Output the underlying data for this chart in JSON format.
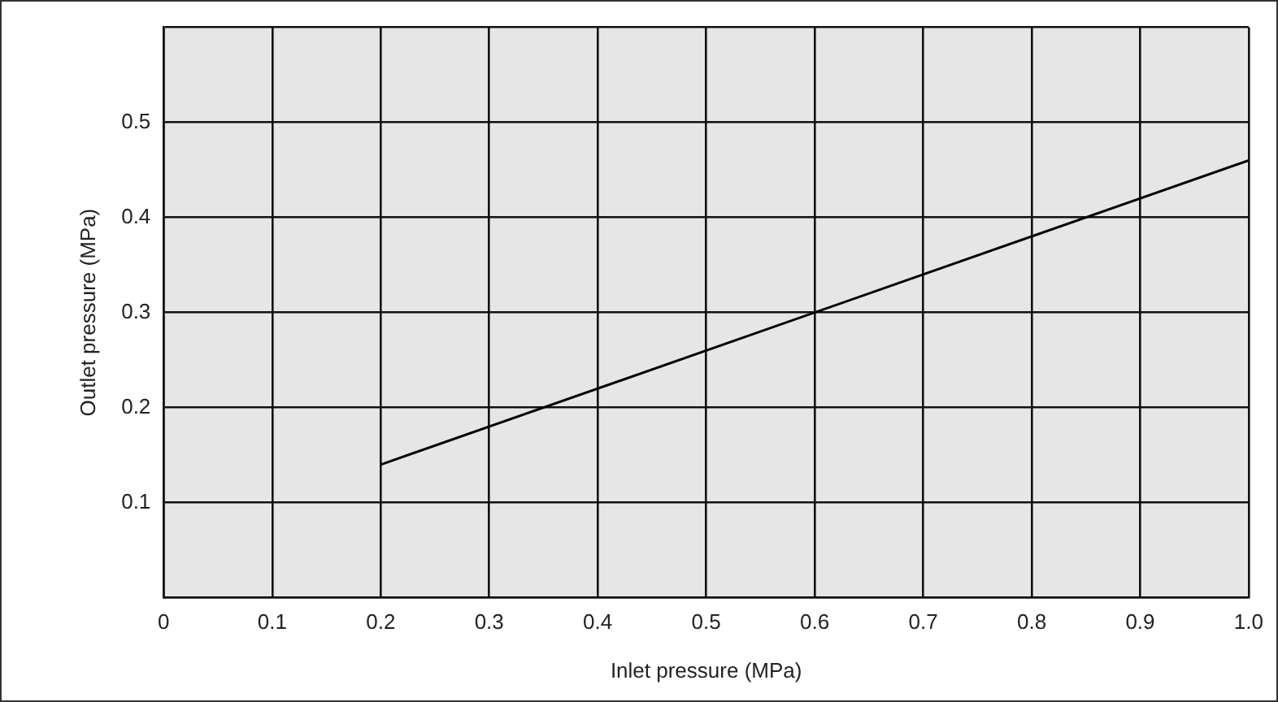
{
  "chart_data": {
    "type": "line",
    "xlabel": "Inlet pressure (MPa)",
    "ylabel": "Outlet pressure (MPa)",
    "x": [
      0.2,
      1.0
    ],
    "series": [
      {
        "color": "#000000",
        "values": [
          0.14,
          0.46
        ]
      }
    ],
    "xlim": [
      0,
      1.0
    ],
    "xticks": [
      0,
      0.1,
      0.2,
      0.3,
      0.4,
      0.5,
      0.6,
      0.7,
      0.8,
      0.9,
      {
        "value": 1.0,
        "label": "1.0"
      }
    ],
    "ylim": [
      0,
      0.6
    ],
    "yticks": [
      {
        "value": 0,
        "label": null
      },
      0.1,
      0.2,
      0.3,
      0.4,
      0.5,
      {
        "value": 0.6,
        "label": null
      }
    ],
    "grid": true,
    "legend": false,
    "marker": "none",
    "line_style": "solid"
  }
}
